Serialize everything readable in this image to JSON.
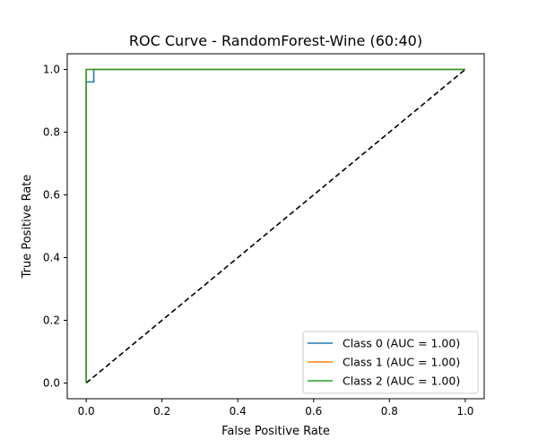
{
  "chart_data": {
    "type": "line",
    "title": "ROC Curve - RandomForest-Wine (60:40)",
    "xlabel": "False Positive Rate",
    "ylabel": "True Positive Rate",
    "xlim": [
      -0.05,
      1.05
    ],
    "ylim": [
      -0.05,
      1.05
    ],
    "xticks": [
      0.0,
      0.2,
      0.4,
      0.6,
      0.8,
      1.0
    ],
    "yticks": [
      0.0,
      0.2,
      0.4,
      0.6,
      0.8,
      1.0
    ],
    "xtick_labels": [
      "0.0",
      "0.2",
      "0.4",
      "0.6",
      "0.8",
      "1.0"
    ],
    "ytick_labels": [
      "0.0",
      "0.2",
      "0.4",
      "0.6",
      "0.8",
      "1.0"
    ],
    "grid": false,
    "legend_position": "lower-right",
    "series": [
      {
        "name": "Class 0 (AUC = 1.00)",
        "color": "#1f77b4",
        "x": [
          0.0,
          0.0,
          0.0,
          0.02,
          0.02,
          1.0
        ],
        "y": [
          0.0,
          0.96,
          0.96,
          0.96,
          1.0,
          1.0
        ]
      },
      {
        "name": "Class 1 (AUC = 1.00)",
        "color": "#ff7f0e",
        "x": [
          0.0,
          0.0,
          1.0
        ],
        "y": [
          0.0,
          1.0,
          1.0
        ]
      },
      {
        "name": "Class 2 (AUC = 1.00)",
        "color": "#2ca02c",
        "x": [
          0.0,
          0.0,
          1.0
        ],
        "y": [
          0.0,
          1.0,
          1.0
        ]
      }
    ],
    "reference_line": {
      "style": "dashed",
      "color": "#000000",
      "x": [
        0.0,
        1.0
      ],
      "y": [
        0.0,
        1.0
      ]
    }
  }
}
